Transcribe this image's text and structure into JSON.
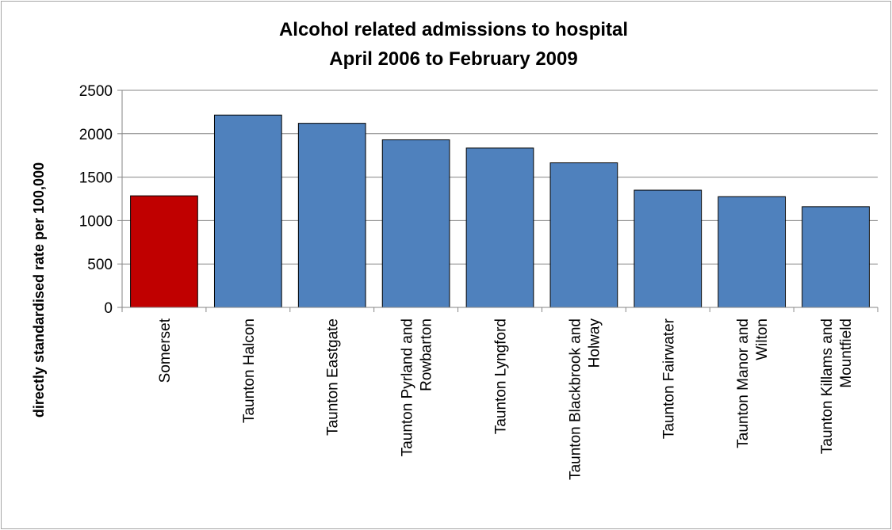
{
  "chart_data": {
    "type": "bar",
    "title": [
      "Alcohol related admissions to hospital",
      "April 2006 to February 2009"
    ],
    "xlabel": "",
    "ylabel": "directly standardised rate per 100,000",
    "ylim": [
      0,
      2500
    ],
    "yticks": [
      0,
      500,
      1000,
      1500,
      2000,
      2500
    ],
    "grid": true,
    "legend": "none",
    "categories": [
      [
        "Somerset"
      ],
      [
        "Taunton Halcon"
      ],
      [
        "Taunton Eastgate"
      ],
      [
        "Taunton Pyrland and",
        "Rowbarton"
      ],
      [
        "Taunton Lyngford"
      ],
      [
        "Taunton Blackbrook and",
        "Holway"
      ],
      [
        "Taunton Fairwater"
      ],
      [
        "Taunton Manor and",
        "Wilton"
      ],
      [
        "Taunton Killams and",
        "Mountfield"
      ]
    ],
    "values": [
      1285,
      2215,
      2120,
      1930,
      1835,
      1665,
      1350,
      1275,
      1160
    ],
    "colors": [
      "#c00000",
      "#4f81bd",
      "#4f81bd",
      "#4f81bd",
      "#4f81bd",
      "#4f81bd",
      "#4f81bd",
      "#4f81bd",
      "#4f81bd"
    ],
    "gridline_color": "#868686",
    "bar_edge_color": "#000000"
  }
}
